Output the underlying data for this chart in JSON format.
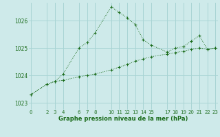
{
  "xlabel": "Graphe pression niveau de la mer (hPa)",
  "background_color": "#ceeaea",
  "grid_color": "#a8d4d4",
  "line_color": "#1a6b1a",
  "ylim": [
    1022.75,
    1026.65
  ],
  "xlim": [
    -0.3,
    23.3
  ],
  "yticks": [
    1023,
    1024,
    1025,
    1026
  ],
  "xticks": [
    0,
    2,
    3,
    4,
    6,
    7,
    8,
    10,
    11,
    12,
    13,
    14,
    15,
    17,
    18,
    19,
    20,
    21,
    22,
    23
  ],
  "line1_x": [
    0,
    2,
    3,
    4,
    6,
    7,
    8,
    10,
    11,
    12,
    13,
    14,
    15,
    17,
    18,
    19,
    20,
    21,
    22,
    23
  ],
  "line1_y": [
    1023.3,
    1023.68,
    1023.78,
    1024.05,
    1025.0,
    1025.2,
    1025.55,
    1026.5,
    1026.3,
    1026.1,
    1025.85,
    1025.3,
    1025.1,
    1024.85,
    1025.0,
    1025.05,
    1025.25,
    1025.45,
    1024.95,
    1025.0
  ],
  "line2_x": [
    0,
    2,
    3,
    4,
    6,
    7,
    8,
    10,
    11,
    12,
    13,
    14,
    15,
    17,
    18,
    19,
    20,
    21,
    22,
    23
  ],
  "line2_y": [
    1023.3,
    1023.68,
    1023.78,
    1023.82,
    1023.95,
    1024.0,
    1024.05,
    1024.2,
    1024.3,
    1024.4,
    1024.52,
    1024.6,
    1024.68,
    1024.78,
    1024.83,
    1024.88,
    1024.95,
    1025.0,
    1024.95,
    1025.0
  ]
}
